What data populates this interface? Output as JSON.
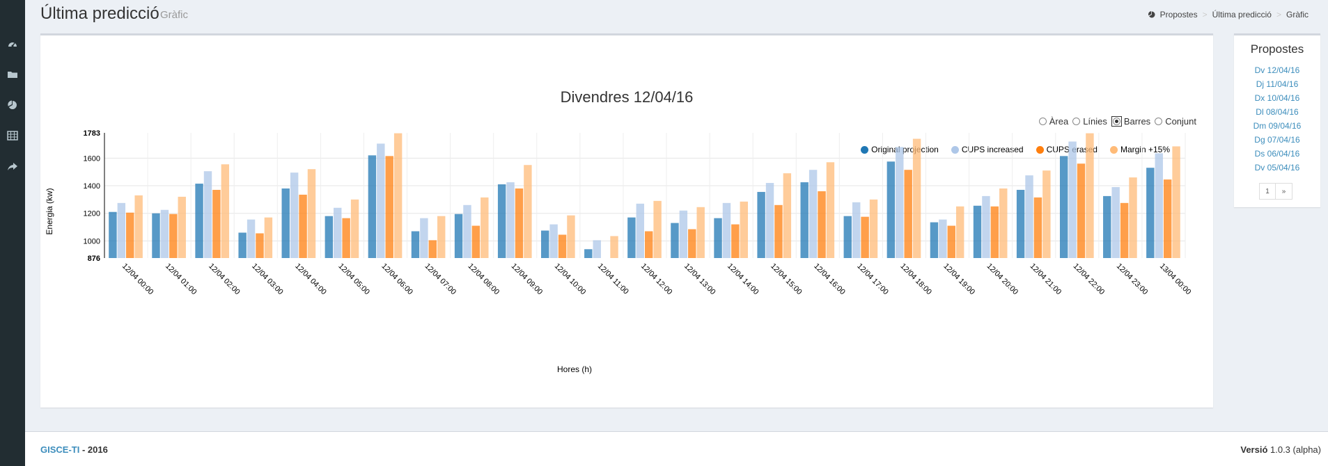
{
  "sidebar": {
    "icons": [
      "dashboard-icon",
      "folder-icon",
      "pie-chart-icon",
      "table-icon",
      "share-icon"
    ]
  },
  "header": {
    "title": "Última predicció",
    "subtitle": "Gràfic",
    "breadcrumb": [
      "Propostes",
      "Última predicció",
      "Gràfic"
    ]
  },
  "chart_controls": {
    "options": [
      "Àrea",
      "Línies",
      "Barres",
      "Conjunt"
    ],
    "selected": "Barres"
  },
  "chart_data": {
    "type": "bar",
    "title": "Divendres 12/04/16",
    "xlabel": "Hores (h)",
    "ylabel": "Energia (kw)",
    "ylim": [
      876,
      1783
    ],
    "yticks": [
      1000,
      1200,
      1400,
      1600
    ],
    "ybounds": [
      "876",
      "1783"
    ],
    "grid": true,
    "legend_position": "top-right",
    "categories": [
      "12/04 00:00",
      "12/04 01:00",
      "12/04 02:00",
      "12/04 03:00",
      "12/04 04:00",
      "12/04 05:00",
      "12/04 06:00",
      "12/04 07:00",
      "12/04 08:00",
      "12/04 09:00",
      "12/04 10:00",
      "12/04 11:00",
      "12/04 12:00",
      "12/04 13:00",
      "12/04 14:00",
      "12/04 15:00",
      "12/04 16:00",
      "12/04 17:00",
      "12/04 18:00",
      "12/04 19:00",
      "12/04 20:00",
      "12/04 21:00",
      "12/04 22:00",
      "12/04 23:00",
      "13/04 00:00"
    ],
    "series": [
      {
        "name": "Original projection",
        "color": "#1f77b4",
        "values": [
          1210,
          1200,
          1415,
          1060,
          1380,
          1180,
          1620,
          1070,
          1195,
          1410,
          1075,
          940,
          1170,
          1130,
          1165,
          1355,
          1425,
          1180,
          1575,
          1135,
          1255,
          1370,
          1615,
          1325,
          1530
        ]
      },
      {
        "name": "CUPS increased",
        "color": "#aec7e8",
        "values": [
          1275,
          1225,
          1505,
          1155,
          1495,
          1240,
          1705,
          1165,
          1260,
          1425,
          1120,
          1005,
          1270,
          1220,
          1275,
          1420,
          1515,
          1280,
          1680,
          1155,
          1325,
          1475,
          1720,
          1390,
          1635
        ]
      },
      {
        "name": "CUPS erased",
        "color": "#ff7f0e",
        "values": [
          1205,
          1195,
          1370,
          1055,
          1335,
          1165,
          1615,
          1005,
          1110,
          1380,
          1045,
          876,
          1070,
          1085,
          1120,
          1260,
          1360,
          1175,
          1515,
          1110,
          1250,
          1315,
          1560,
          1275,
          1445
        ]
      },
      {
        "name": "Margin +15%",
        "color": "#ffbb78",
        "values": [
          1330,
          1320,
          1555,
          1170,
          1520,
          1300,
          1780,
          1180,
          1315,
          1550,
          1185,
          1035,
          1290,
          1245,
          1285,
          1490,
          1570,
          1300,
          1740,
          1250,
          1380,
          1510,
          1780,
          1460,
          1685
        ]
      }
    ]
  },
  "side": {
    "title": "Propostes",
    "items": [
      "Dv 12/04/16",
      "Dj 11/04/16",
      "Dx 10/04/16",
      "Dl 08/04/16",
      "Dm 09/04/16",
      "Dg 07/04/16",
      "Ds 06/04/16",
      "Dv 05/04/16"
    ],
    "pager": [
      "1",
      "»"
    ]
  },
  "footer": {
    "brand": "GISCE-TI",
    "year": " - 2016",
    "version_label": "Versió",
    "version": " 1.0.3 (alpha)"
  }
}
